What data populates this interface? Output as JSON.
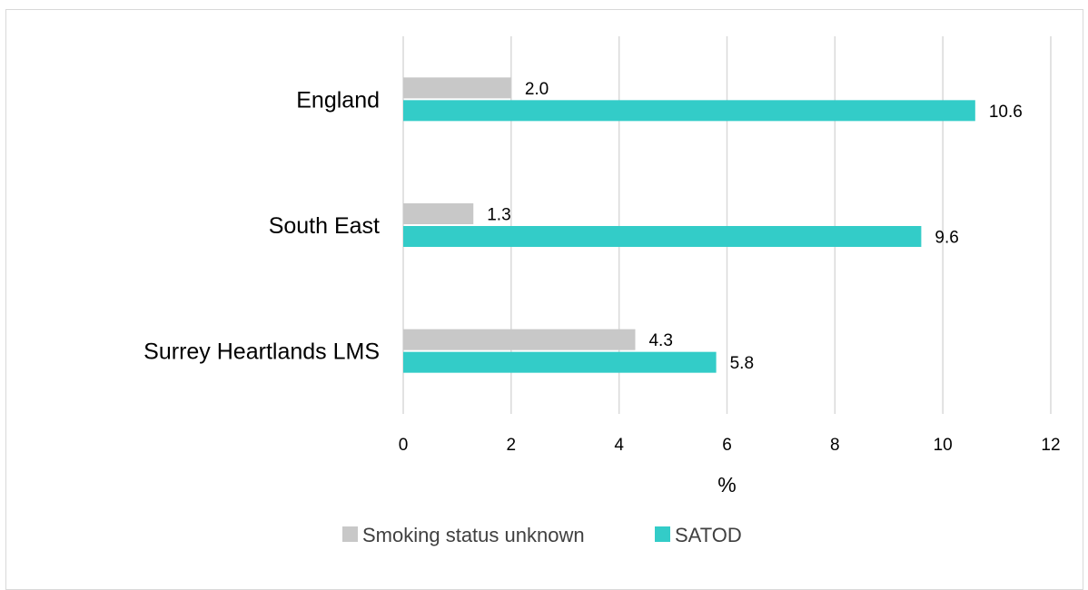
{
  "chart_data": {
    "type": "bar",
    "orientation": "horizontal",
    "categories": [
      "England",
      "South East",
      "Surrey Heartlands LMS"
    ],
    "series": [
      {
        "name": "Smoking status unknown",
        "values": [
          2.0,
          1.3,
          4.3
        ],
        "color": "#c8c8c8",
        "labels": [
          "2.0",
          "1.3",
          "4.3"
        ]
      },
      {
        "name": "SATOD",
        "values": [
          10.6,
          9.6,
          5.8
        ],
        "color": "#33ccc8",
        "labels": [
          "10.6",
          "9.6",
          "5.8"
        ]
      }
    ],
    "xlabel": "%",
    "ylabel": "",
    "xlim": [
      0,
      12
    ],
    "x_ticks": [
      "0",
      "2",
      "4",
      "6",
      "8",
      "10",
      "12"
    ],
    "grid": "vertical",
    "legend": "bottom"
  }
}
